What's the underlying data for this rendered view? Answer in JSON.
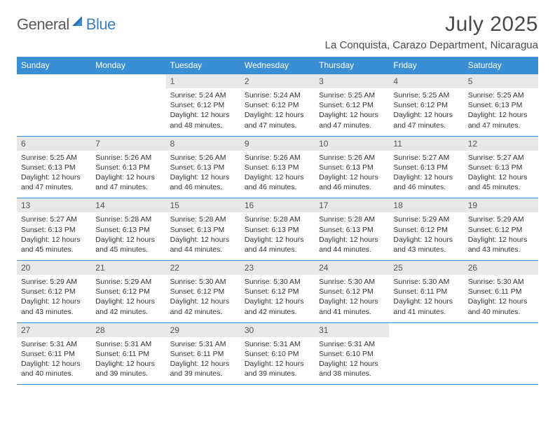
{
  "logo": {
    "part1": "General",
    "part2": "Blue"
  },
  "title": "July 2025",
  "location": "La Conquista, Carazo Department, Nicaragua",
  "colors": {
    "header_bg": "#3a8fd4",
    "header_text": "#ffffff",
    "daynum_bg": "#e8e8e8",
    "border": "#3a8fd4",
    "logo_gray": "#5a5a5a",
    "logo_blue": "#3a7fc4"
  },
  "weekdays": [
    "Sunday",
    "Monday",
    "Tuesday",
    "Wednesday",
    "Thursday",
    "Friday",
    "Saturday"
  ],
  "weeks": [
    [
      {
        "blank": true
      },
      {
        "blank": true
      },
      {
        "d": "1",
        "sr": "5:24 AM",
        "ss": "6:12 PM",
        "dl": "12 hours and 48 minutes."
      },
      {
        "d": "2",
        "sr": "5:24 AM",
        "ss": "6:12 PM",
        "dl": "12 hours and 47 minutes."
      },
      {
        "d": "3",
        "sr": "5:25 AM",
        "ss": "6:12 PM",
        "dl": "12 hours and 47 minutes."
      },
      {
        "d": "4",
        "sr": "5:25 AM",
        "ss": "6:12 PM",
        "dl": "12 hours and 47 minutes."
      },
      {
        "d": "5",
        "sr": "5:25 AM",
        "ss": "6:13 PM",
        "dl": "12 hours and 47 minutes."
      }
    ],
    [
      {
        "d": "6",
        "sr": "5:25 AM",
        "ss": "6:13 PM",
        "dl": "12 hours and 47 minutes."
      },
      {
        "d": "7",
        "sr": "5:26 AM",
        "ss": "6:13 PM",
        "dl": "12 hours and 47 minutes."
      },
      {
        "d": "8",
        "sr": "5:26 AM",
        "ss": "6:13 PM",
        "dl": "12 hours and 46 minutes."
      },
      {
        "d": "9",
        "sr": "5:26 AM",
        "ss": "6:13 PM",
        "dl": "12 hours and 46 minutes."
      },
      {
        "d": "10",
        "sr": "5:26 AM",
        "ss": "6:13 PM",
        "dl": "12 hours and 46 minutes."
      },
      {
        "d": "11",
        "sr": "5:27 AM",
        "ss": "6:13 PM",
        "dl": "12 hours and 46 minutes."
      },
      {
        "d": "12",
        "sr": "5:27 AM",
        "ss": "6:13 PM",
        "dl": "12 hours and 45 minutes."
      }
    ],
    [
      {
        "d": "13",
        "sr": "5:27 AM",
        "ss": "6:13 PM",
        "dl": "12 hours and 45 minutes."
      },
      {
        "d": "14",
        "sr": "5:28 AM",
        "ss": "6:13 PM",
        "dl": "12 hours and 45 minutes."
      },
      {
        "d": "15",
        "sr": "5:28 AM",
        "ss": "6:13 PM",
        "dl": "12 hours and 44 minutes."
      },
      {
        "d": "16",
        "sr": "5:28 AM",
        "ss": "6:13 PM",
        "dl": "12 hours and 44 minutes."
      },
      {
        "d": "17",
        "sr": "5:28 AM",
        "ss": "6:13 PM",
        "dl": "12 hours and 44 minutes."
      },
      {
        "d": "18",
        "sr": "5:29 AM",
        "ss": "6:12 PM",
        "dl": "12 hours and 43 minutes."
      },
      {
        "d": "19",
        "sr": "5:29 AM",
        "ss": "6:12 PM",
        "dl": "12 hours and 43 minutes."
      }
    ],
    [
      {
        "d": "20",
        "sr": "5:29 AM",
        "ss": "6:12 PM",
        "dl": "12 hours and 43 minutes."
      },
      {
        "d": "21",
        "sr": "5:29 AM",
        "ss": "6:12 PM",
        "dl": "12 hours and 42 minutes."
      },
      {
        "d": "22",
        "sr": "5:30 AM",
        "ss": "6:12 PM",
        "dl": "12 hours and 42 minutes."
      },
      {
        "d": "23",
        "sr": "5:30 AM",
        "ss": "6:12 PM",
        "dl": "12 hours and 42 minutes."
      },
      {
        "d": "24",
        "sr": "5:30 AM",
        "ss": "6:12 PM",
        "dl": "12 hours and 41 minutes."
      },
      {
        "d": "25",
        "sr": "5:30 AM",
        "ss": "6:11 PM",
        "dl": "12 hours and 41 minutes."
      },
      {
        "d": "26",
        "sr": "5:30 AM",
        "ss": "6:11 PM",
        "dl": "12 hours and 40 minutes."
      }
    ],
    [
      {
        "d": "27",
        "sr": "5:31 AM",
        "ss": "6:11 PM",
        "dl": "12 hours and 40 minutes."
      },
      {
        "d": "28",
        "sr": "5:31 AM",
        "ss": "6:11 PM",
        "dl": "12 hours and 39 minutes."
      },
      {
        "d": "29",
        "sr": "5:31 AM",
        "ss": "6:11 PM",
        "dl": "12 hours and 39 minutes."
      },
      {
        "d": "30",
        "sr": "5:31 AM",
        "ss": "6:10 PM",
        "dl": "12 hours and 39 minutes."
      },
      {
        "d": "31",
        "sr": "5:31 AM",
        "ss": "6:10 PM",
        "dl": "12 hours and 38 minutes."
      },
      {
        "blank": true
      },
      {
        "blank": true
      }
    ]
  ],
  "labels": {
    "sunrise": "Sunrise:",
    "sunset": "Sunset:",
    "daylight": "Daylight:"
  }
}
